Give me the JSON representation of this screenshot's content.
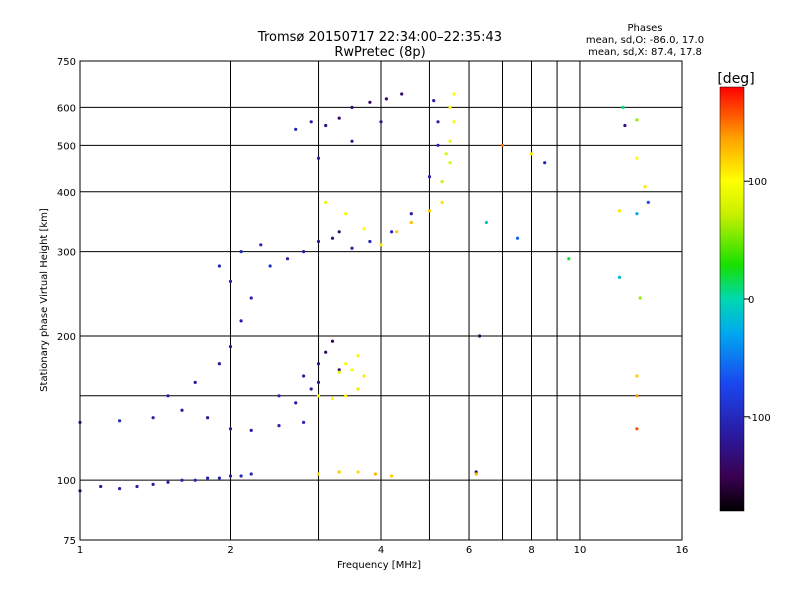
{
  "chart_data": {
    "type": "scatter",
    "title": "Tromsø 20150717 22:34:00–22:35:43",
    "subtitle": "RwPretec (8p)",
    "xlabel": "Frequency [MHz]",
    "ylabel": "Stationary phase Virtual Height [km]",
    "x_scale": "log",
    "y_scale": "log",
    "xlim": [
      1,
      16
    ],
    "ylim": [
      75,
      750
    ],
    "x_ticks": [
      "1",
      "2",
      "4",
      "6",
      "8",
      "10",
      "16"
    ],
    "x_tick_values": [
      1,
      2,
      4,
      6,
      8,
      10,
      16
    ],
    "x_gridlines": [
      1,
      2,
      3,
      4,
      5,
      6,
      7,
      8,
      9,
      10,
      16
    ],
    "y_ticks": [
      "75",
      "100",
      "200",
      "300",
      "400",
      "500",
      "600",
      "750"
    ],
    "y_tick_values": [
      75,
      100,
      200,
      300,
      400,
      500,
      600,
      750
    ],
    "y_gridlines": [
      100,
      150,
      200,
      300,
      400,
      500,
      600,
      750
    ],
    "grid": true,
    "legend": {
      "title": "Phases",
      "lines": [
        "mean, sd,O: -86.0, 17.0",
        "mean, sd,X: 87.4, 17.8"
      ],
      "placement": "top-right"
    },
    "colorbar": {
      "label": "[deg]",
      "range": [
        -180,
        180
      ],
      "ticks": [
        "100",
        "0",
        "-100"
      ],
      "tick_values": [
        100,
        0,
        -100
      ],
      "colormap": "rainbow"
    },
    "series": [
      {
        "values": [
          [
            1.0,
            95,
            -120
          ],
          [
            1.2,
            96,
            -110
          ],
          [
            1.4,
            98,
            -115
          ],
          [
            1.6,
            100,
            -110
          ],
          [
            1.8,
            101,
            -105
          ],
          [
            2.0,
            102,
            -108
          ],
          [
            2.2,
            103,
            -102
          ],
          [
            1.1,
            97,
            -118
          ],
          [
            1.3,
            97,
            -112
          ],
          [
            1.5,
            99,
            -108
          ],
          [
            1.7,
            100,
            -104
          ],
          [
            1.9,
            101,
            -106
          ],
          [
            2.1,
            102,
            -100
          ]
        ]
      },
      {
        "values": [
          [
            1.0,
            132,
            -95
          ],
          [
            1.2,
            133,
            -100
          ],
          [
            1.4,
            135,
            -110
          ],
          [
            1.6,
            140,
            -115
          ],
          [
            1.8,
            135,
            -120
          ],
          [
            2.0,
            128,
            -118
          ],
          [
            2.2,
            127,
            -112
          ],
          [
            2.5,
            130,
            -108
          ],
          [
            2.8,
            132,
            -100
          ],
          [
            1.5,
            150,
            -115
          ],
          [
            1.7,
            160,
            -120
          ],
          [
            1.9,
            175,
            -125
          ],
          [
            2.0,
            190,
            -118
          ],
          [
            2.1,
            215,
            -112
          ],
          [
            2.2,
            240,
            -108
          ],
          [
            2.0,
            260,
            -110
          ],
          [
            1.9,
            280,
            -105
          ],
          [
            2.1,
            300,
            -100
          ],
          [
            2.3,
            310,
            -102
          ]
        ]
      },
      {
        "values": [
          [
            2.5,
            150,
            -105
          ],
          [
            2.8,
            165,
            -110
          ],
          [
            3.0,
            175,
            -125
          ],
          [
            3.1,
            185,
            -140
          ],
          [
            3.2,
            195,
            -145
          ],
          [
            3.3,
            170,
            -135
          ],
          [
            3.0,
            160,
            -128
          ],
          [
            2.7,
            145,
            -115
          ],
          [
            2.9,
            155,
            -120
          ]
        ]
      },
      {
        "values": [
          [
            2.4,
            280,
            -95
          ],
          [
            2.6,
            290,
            -105
          ],
          [
            2.8,
            300,
            -115
          ],
          [
            3.0,
            315,
            -125
          ],
          [
            3.2,
            320,
            -130
          ],
          [
            3.3,
            330,
            -140
          ],
          [
            3.5,
            305,
            -110
          ],
          [
            3.8,
            315,
            -105
          ],
          [
            4.2,
            330,
            -110
          ],
          [
            4.6,
            360,
            -115
          ],
          [
            5.0,
            430,
            -110
          ],
          [
            5.2,
            500,
            -105
          ],
          [
            5.2,
            560,
            -110
          ],
          [
            5.1,
            620,
            -115
          ]
        ]
      },
      {
        "values": [
          [
            3.0,
            150,
            95
          ],
          [
            3.2,
            148,
            100
          ],
          [
            3.4,
            150,
            105
          ],
          [
            3.6,
            155,
            110
          ],
          [
            3.7,
            165,
            108
          ],
          [
            3.5,
            170,
            102
          ],
          [
            3.4,
            175,
            98
          ],
          [
            3.6,
            182,
            95
          ],
          [
            3.3,
            168,
            90
          ]
        ]
      },
      {
        "values": [
          [
            3.1,
            380,
            90
          ],
          [
            3.4,
            360,
            95
          ],
          [
            3.7,
            335,
            100
          ],
          [
            4.0,
            310,
            110
          ],
          [
            4.3,
            330,
            120
          ],
          [
            4.6,
            345,
            125
          ],
          [
            5.0,
            365,
            120
          ],
          [
            5.3,
            380,
            110
          ]
        ]
      },
      {
        "values": [
          [
            5.3,
            420,
            75
          ],
          [
            5.5,
            460,
            85
          ],
          [
            5.5,
            510,
            90
          ],
          [
            5.6,
            560,
            95
          ],
          [
            5.5,
            600,
            100
          ],
          [
            5.6,
            640,
            98
          ],
          [
            5.4,
            480,
            80
          ]
        ]
      },
      {
        "values": [
          [
            2.7,
            540,
            -105
          ],
          [
            2.9,
            560,
            -115
          ],
          [
            3.1,
            550,
            -130
          ],
          [
            3.3,
            570,
            -135
          ],
          [
            3.5,
            600,
            -140
          ],
          [
            3.8,
            615,
            -145
          ],
          [
            4.1,
            625,
            -140
          ],
          [
            4.4,
            640,
            -135
          ],
          [
            3.0,
            470,
            -110
          ],
          [
            3.5,
            510,
            -120
          ],
          [
            4.0,
            560,
            -125
          ]
        ]
      },
      {
        "values": [
          [
            3.0,
            103,
            110
          ],
          [
            3.3,
            104,
            120
          ],
          [
            3.6,
            104,
            115
          ],
          [
            3.9,
            103,
            130
          ],
          [
            4.2,
            102,
            120
          ],
          [
            6.2,
            104,
            -130
          ],
          [
            6.2,
            103,
            130
          ]
        ]
      },
      {
        "values": [
          [
            12.2,
            600,
            10
          ],
          [
            12.3,
            550,
            -130
          ],
          [
            13.0,
            565,
            60
          ],
          [
            13.0,
            470,
            100
          ],
          [
            13.5,
            410,
            110
          ],
          [
            13.7,
            380,
            -70
          ],
          [
            13.0,
            360,
            -30
          ],
          [
            12.0,
            365,
            110
          ],
          [
            12.0,
            265,
            -20
          ],
          [
            13.2,
            240,
            60
          ],
          [
            13.0,
            165,
            120
          ],
          [
            13.0,
            150,
            140
          ],
          [
            13.0,
            128,
            160
          ],
          [
            6.5,
            345,
            -10
          ],
          [
            7.5,
            320,
            -60
          ],
          [
            9.5,
            290,
            20
          ],
          [
            7.0,
            500,
            150
          ],
          [
            8.0,
            480,
            110
          ],
          [
            8.5,
            460,
            -100
          ],
          [
            6.3,
            200,
            -150
          ]
        ]
      }
    ]
  }
}
